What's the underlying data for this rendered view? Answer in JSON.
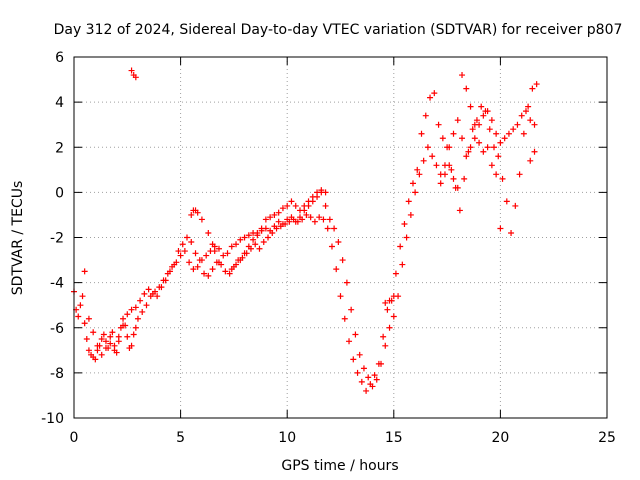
{
  "chart_data": {
    "type": "scatter",
    "title": "Day 312 of 2024, Sidereal Day-to-day VTEC variation (SDTVAR) for receiver p807",
    "xlabel": "GPS time / hours",
    "ylabel": "SDTVAR / TECUs",
    "xlim": [
      0,
      25
    ],
    "ylim": [
      -10,
      6
    ],
    "xticks": [
      0,
      5,
      10,
      15,
      20,
      25
    ],
    "yticks": [
      -10,
      -8,
      -6,
      -4,
      -2,
      0,
      2,
      4,
      6
    ],
    "grid": true,
    "marker": "+",
    "color": "#ff0000",
    "series": [
      {
        "x": [
          0.0,
          0.1,
          0.2,
          0.3,
          0.4,
          0.5,
          0.6,
          0.7,
          0.8,
          0.9,
          1.0,
          1.1,
          1.2,
          1.3,
          1.4,
          1.5,
          1.6,
          1.7,
          1.8,
          1.9,
          2.0,
          2.1,
          2.2,
          2.3,
          2.4,
          2.5,
          2.6,
          2.7,
          2.8,
          2.9,
          3.0,
          3.2,
          3.4,
          3.6,
          3.8,
          4.0,
          4.2,
          4.4,
          4.6,
          4.8,
          5.0,
          5.2,
          5.4,
          5.6,
          5.8,
          6.0,
          6.2,
          6.4,
          6.6,
          6.8,
          7.0,
          7.2,
          7.4,
          7.6,
          7.8,
          8.0,
          8.2,
          8.4,
          8.6,
          8.8,
          9.0,
          9.2,
          9.4,
          9.6,
          9.8,
          10.0,
          10.2,
          10.4,
          10.6,
          10.8,
          11.0,
          11.2,
          11.4,
          11.6,
          11.8,
          12.0,
          12.2,
          12.4,
          12.6,
          12.8,
          13.0,
          13.2,
          13.4,
          13.6,
          13.8,
          14.0,
          14.2,
          14.4,
          14.6,
          14.8,
          15.0,
          15.2,
          15.4,
          15.6,
          15.8,
          16.0,
          16.2,
          16.4,
          16.6,
          16.8,
          17.0,
          17.2,
          17.4,
          17.6,
          17.8,
          18.0,
          18.2,
          18.4,
          18.6,
          18.8,
          19.0,
          19.2,
          19.4,
          19.6,
          19.8,
          20.0,
          20.2,
          20.4,
          20.6,
          20.8,
          21.0,
          21.2,
          21.4,
          21.6
        ],
        "y": [
          -4.4,
          -5.2,
          -5.5,
          -5.0,
          -4.6,
          -5.8,
          -6.5,
          -7.0,
          -7.2,
          -7.3,
          -7.4,
          -7.0,
          -6.8,
          -6.5,
          -6.3,
          -6.6,
          -6.9,
          -6.4,
          -6.2,
          -6.8,
          -7.1,
          -6.6,
          -6.0,
          -5.6,
          -5.9,
          -6.4,
          -6.9,
          -6.8,
          -6.3,
          -6.0,
          -5.6,
          -5.3,
          -5.0,
          -4.6,
          -4.4,
          -4.2,
          -3.9,
          -3.6,
          -3.3,
          -3.1,
          -2.8,
          -2.6,
          -3.1,
          -3.4,
          -3.3,
          -3.0,
          -2.8,
          -2.6,
          -2.4,
          -2.5,
          -2.8,
          -2.7,
          -2.4,
          -2.3,
          -2.1,
          -2.0,
          -1.9,
          -1.8,
          -1.9,
          -1.7,
          -1.6,
          -1.7,
          -1.5,
          -1.3,
          -1.4,
          -1.2,
          -1.1,
          -1.3,
          -1.1,
          -0.8,
          -0.6,
          -0.4,
          -0.2,
          0.0,
          -0.6,
          -1.2,
          -1.6,
          -2.2,
          -3.0,
          -4.0,
          -5.2,
          -6.3,
          -7.2,
          -7.8,
          -8.2,
          -8.6,
          -8.3,
          -7.6,
          -6.8,
          -6.0,
          -5.5,
          -4.6,
          -3.2,
          -2.0,
          -1.0,
          0.0,
          0.8,
          1.4,
          2.0,
          1.6,
          1.2,
          0.8,
          1.2,
          2.0,
          2.6,
          3.2,
          2.4,
          1.6,
          2.0,
          2.4,
          3.0,
          3.4,
          3.6,
          3.2,
          2.6,
          2.2,
          2.4,
          2.6,
          2.8,
          3.0,
          3.4,
          3.6,
          3.2,
          3.0
        ]
      },
      {
        "x": [
          0.5,
          0.7,
          0.9,
          1.1,
          1.3,
          1.5,
          1.7,
          1.9,
          2.1,
          2.3,
          2.5,
          2.7,
          2.9,
          3.1,
          3.3,
          3.5,
          3.7,
          3.9,
          4.1,
          4.3,
          4.5,
          4.7,
          4.9,
          5.1,
          5.3,
          5.5,
          5.7,
          5.9,
          6.1,
          6.3,
          6.5,
          6.7,
          6.9,
          7.1,
          7.3,
          7.5,
          7.7,
          7.9,
          8.1,
          8.3,
          8.5,
          8.7,
          8.9,
          9.1,
          9.3,
          9.5,
          9.7,
          9.9,
          10.1,
          10.3,
          10.5,
          10.7,
          10.9,
          11.1,
          11.3,
          11.5,
          11.7,
          11.9,
          12.1,
          12.3,
          12.5,
          12.7,
          12.9,
          13.1,
          13.3,
          13.5,
          13.7,
          13.9,
          14.1,
          14.3,
          14.5,
          14.7,
          14.9,
          15.1,
          15.3,
          15.5,
          15.7,
          15.9,
          16.1,
          16.3,
          16.5,
          16.7,
          16.9,
          17.1,
          17.3,
          17.5,
          17.7,
          17.9,
          18.1,
          18.3,
          18.5,
          18.7,
          18.9,
          19.1,
          19.3,
          19.5,
          19.7,
          19.9,
          20.1,
          20.3,
          20.5,
          20.7,
          20.9,
          21.1,
          21.3,
          21.5,
          21.7
        ],
        "y": [
          -3.5,
          -5.6,
          -6.2,
          -6.8,
          -7.2,
          -6.9,
          -6.7,
          -7.0,
          -6.4,
          -5.9,
          -5.4,
          -5.2,
          -5.1,
          -4.8,
          -4.5,
          -4.3,
          -4.5,
          -4.6,
          -4.2,
          -3.9,
          -3.5,
          -3.2,
          -2.6,
          -2.3,
          -2.0,
          -2.2,
          -2.7,
          -3.0,
          -3.6,
          -3.7,
          -3.4,
          -3.1,
          -3.2,
          -3.5,
          -3.6,
          -3.3,
          -3.0,
          -2.9,
          -2.7,
          -2.5,
          -2.3,
          -2.5,
          -2.2,
          -2.0,
          -1.8,
          -1.6,
          -1.5,
          -1.4,
          -1.3,
          -1.2,
          -1.3,
          -1.2,
          -1.0,
          -1.1,
          -1.3,
          -1.1,
          -1.2,
          -1.6,
          -2.4,
          -3.4,
          -4.6,
          -5.6,
          -6.6,
          -7.4,
          -8.0,
          -8.4,
          -8.8,
          -8.5,
          -8.1,
          -7.6,
          -6.4,
          -5.2,
          -4.8,
          -3.6,
          -2.4,
          -1.4,
          -0.4,
          0.4,
          1.0,
          2.6,
          3.4,
          4.2,
          4.4,
          3.0,
          2.4,
          2.0,
          1.0,
          0.2,
          -0.8,
          0.6,
          1.8,
          2.8,
          3.2,
          3.8,
          3.6,
          2.8,
          2.0,
          1.6,
          0.6,
          -0.4,
          -1.8,
          -0.6,
          0.8,
          2.6,
          3.8,
          4.6,
          4.8
        ]
      },
      {
        "x": [
          2.7,
          2.8,
          2.9,
          5.5,
          5.6,
          5.7,
          5.8,
          6.0,
          6.3,
          6.5,
          6.6,
          6.8,
          7.4,
          7.6,
          7.8,
          8.0,
          8.2,
          8.4,
          8.6,
          8.8,
          9.0,
          9.2,
          9.4,
          9.6,
          9.8,
          10.0,
          10.2,
          10.4,
          10.6,
          10.8,
          11.0,
          11.2,
          11.4,
          11.6,
          11.8,
          14.6,
          14.8,
          15.0,
          17.2,
          17.4,
          17.6,
          17.8,
          18.0,
          18.2,
          18.4,
          18.6,
          18.8,
          19.0,
          19.2,
          19.4,
          19.6,
          19.8,
          20.0,
          21.4,
          21.6
        ],
        "y": [
          5.4,
          5.2,
          5.1,
          -1.0,
          -0.8,
          -0.8,
          -0.9,
          -1.2,
          -1.8,
          -2.3,
          -2.6,
          -3.1,
          -3.4,
          -3.2,
          -3.0,
          -2.7,
          -2.4,
          -2.1,
          -1.8,
          -1.6,
          -1.2,
          -1.1,
          -1.0,
          -0.9,
          -0.7,
          -0.6,
          -0.4,
          -0.6,
          -0.8,
          -0.6,
          -0.4,
          -0.2,
          0.0,
          0.1,
          0.0,
          -4.9,
          -4.8,
          -4.6,
          0.4,
          0.8,
          1.2,
          0.6,
          0.2,
          5.2,
          4.6,
          3.8,
          3.0,
          2.2,
          1.8,
          2.0,
          1.2,
          0.8,
          -1.6,
          1.4,
          1.8
        ]
      }
    ]
  }
}
